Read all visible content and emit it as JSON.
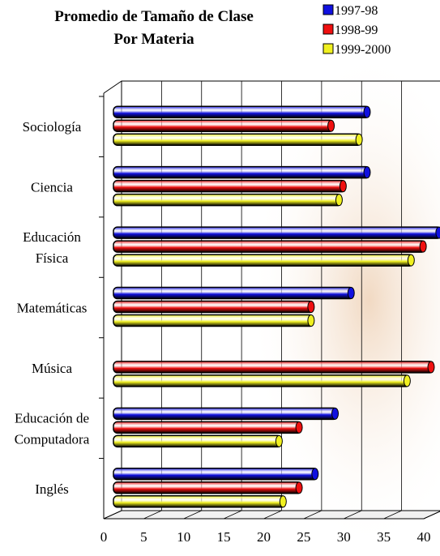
{
  "chart_data": {
    "type": "bar",
    "title": [
      "Promedio de Tamaño de Clase",
      "Por Materia"
    ],
    "categories": [
      "Sociología",
      "Ciencia",
      "Educación\nFísica",
      "Matemáticas",
      "Música",
      "Educación de\nComputadora",
      "Inglés"
    ],
    "series": [
      {
        "name": "1997-98",
        "color": "#1010e0",
        "values": [
          32,
          32,
          41,
          30,
          null,
          28,
          25.5
        ]
      },
      {
        "name": "1998-99",
        "color": "#f01010",
        "values": [
          27.5,
          29,
          39,
          25,
          40,
          23.5,
          23.5
        ]
      },
      {
        "name": "1999-2000",
        "color": "#f0f020",
        "values": [
          31,
          28.5,
          37.5,
          25,
          37,
          21,
          21.5
        ]
      }
    ],
    "xlim": [
      0,
      40
    ],
    "xticks": [
      0,
      5,
      10,
      15,
      20,
      25,
      30,
      35,
      40
    ],
    "grid": true
  }
}
